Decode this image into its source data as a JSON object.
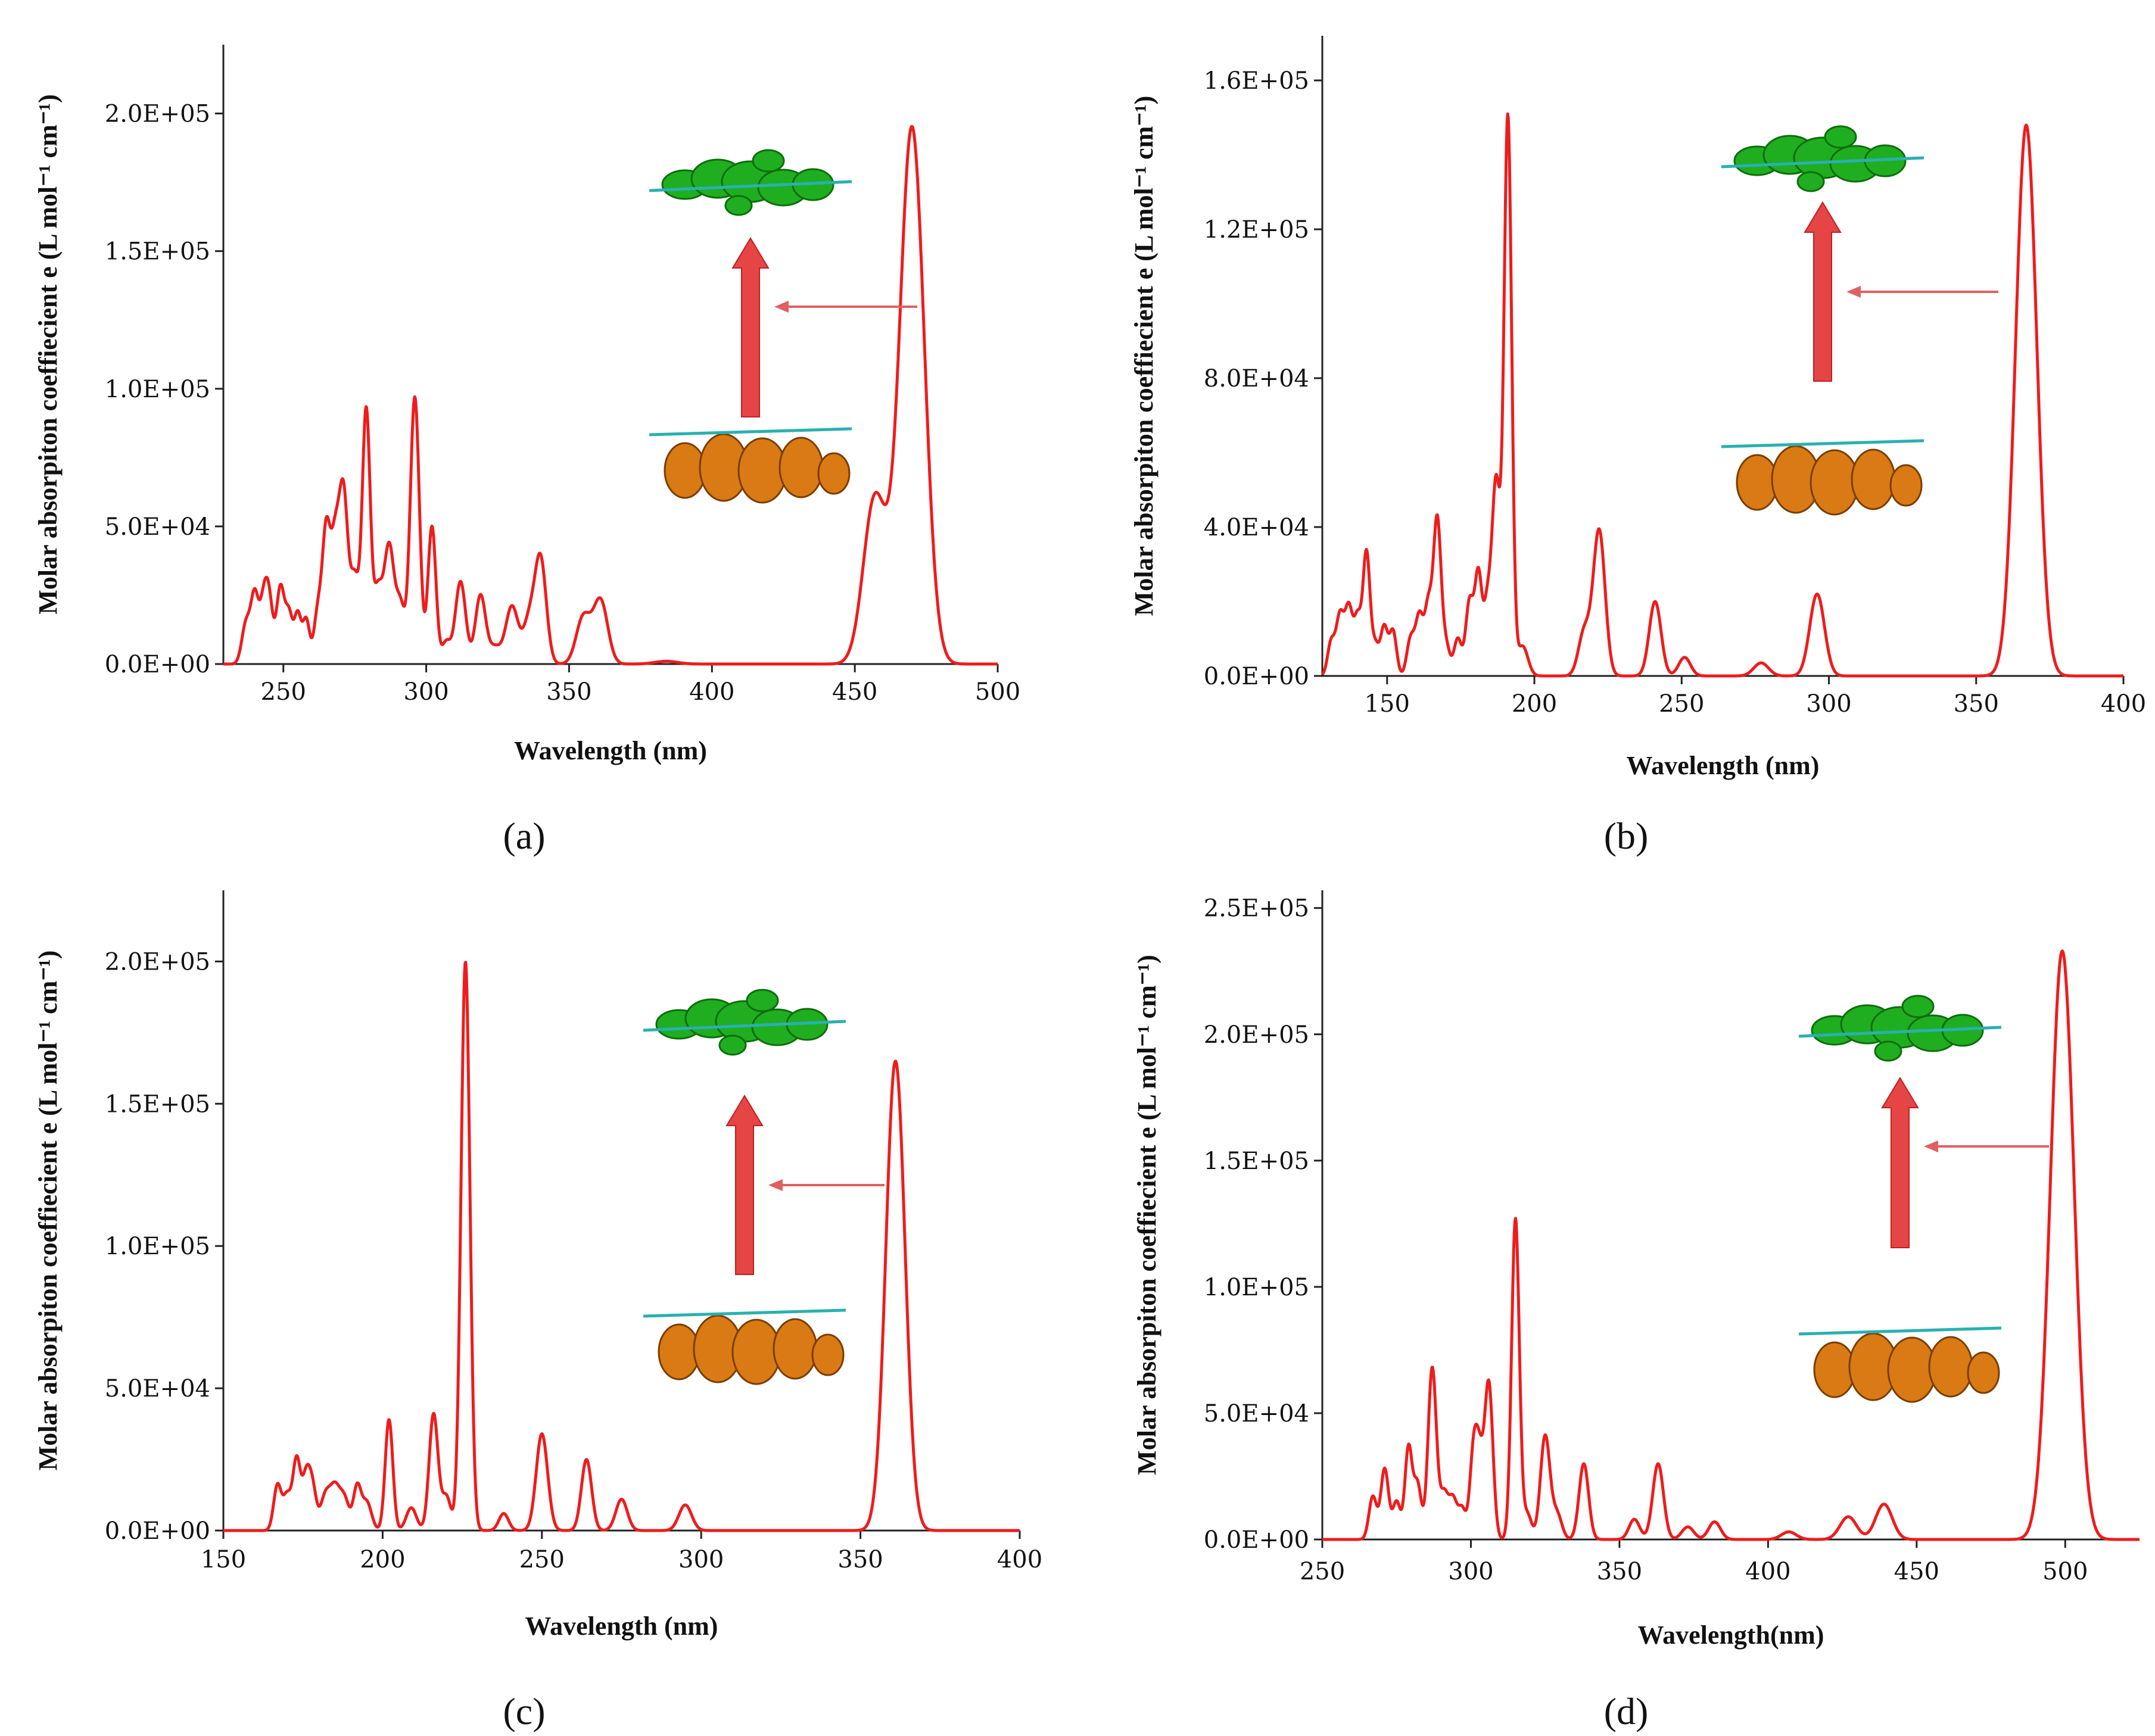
{
  "chart_data": [
    {
      "type": "line",
      "panel": "a",
      "caption": "(a)",
      "xlabel": "Wavelength (nm)",
      "ylabel": "Molar absorpiton coeffiecient e (L mol⁻¹ cm⁻¹)",
      "xlim": [
        229,
        500
      ],
      "ylim": [
        0,
        225000
      ],
      "xticks": [
        250,
        300,
        350,
        400,
        450,
        500
      ],
      "xtick_labels": [
        "250",
        "300",
        "350",
        "400",
        "450",
        "500"
      ],
      "yticks": [
        0,
        50000,
        100000,
        150000,
        200000
      ],
      "ytick_labels": [
        "0.0E+00",
        "5.0E+04",
        "1.0E+05",
        "1.5E+05",
        "2.0E+05"
      ],
      "color": "#ee1c1c",
      "baseline": 0,
      "peaks": [
        [
          237,
          15000,
          1.5
        ],
        [
          240,
          24000,
          1.3
        ],
        [
          243,
          20000,
          1.3
        ],
        [
          245,
          22000,
          1.3
        ],
        [
          249,
          28000,
          1.4
        ],
        [
          252,
          17000,
          1.2
        ],
        [
          255,
          18000,
          1.2
        ],
        [
          258,
          16000,
          1.2
        ],
        [
          262,
          18000,
          1.3
        ],
        [
          265,
          48000,
          1.4
        ],
        [
          268,
          38000,
          1.4
        ],
        [
          271,
          62000,
          1.6
        ],
        [
          275,
          30000,
          1.5
        ],
        [
          279,
          92000,
          1.4
        ],
        [
          283,
          25000,
          1.5
        ],
        [
          287,
          43000,
          1.8
        ],
        [
          291,
          20000,
          1.5
        ],
        [
          296,
          97000,
          1.6
        ],
        [
          302,
          50000,
          1.4
        ],
        [
          307,
          8000,
          1.5
        ],
        [
          312,
          30000,
          1.8
        ],
        [
          319,
          25000,
          1.8
        ],
        [
          324,
          6000,
          2.0
        ],
        [
          330,
          21000,
          2.2
        ],
        [
          336,
          15000,
          2.0
        ],
        [
          340,
          38000,
          2.0
        ],
        [
          355,
          17000,
          2.5
        ],
        [
          361,
          23000,
          2.5
        ],
        [
          384,
          1000,
          4.0
        ],
        [
          457,
          60000,
          4.0
        ],
        [
          470,
          195000,
          4.3
        ]
      ],
      "annotation": "HOMO to LUMO transition at the main absorption peak"
    },
    {
      "type": "line",
      "panel": "b",
      "caption": "(b)",
      "xlabel": "Wavelength (nm)",
      "ylabel": "Molar absorpiton coeffiecient e (L mol⁻¹ cm⁻¹)",
      "xlim": [
        128,
        400
      ],
      "ylim": [
        0,
        172000
      ],
      "xticks": [
        150,
        200,
        250,
        300,
        350,
        400
      ],
      "xtick_labels": [
        "150",
        "200",
        "250",
        "300",
        "350",
        "400"
      ],
      "yticks": [
        0,
        40000,
        80000,
        120000,
        160000
      ],
      "ytick_labels": [
        "0.0E+00",
        "4.0E+04",
        "8.0E+04",
        "1.2E+05",
        "1.6E+05"
      ],
      "color": "#ee1c1c",
      "baseline": 0,
      "peaks": [
        [
          131,
          9000,
          1.2
        ],
        [
          134,
          16000,
          1.3
        ],
        [
          137,
          18000,
          1.3
        ],
        [
          140,
          15000,
          1.2
        ],
        [
          143,
          33000,
          1.2
        ],
        [
          146,
          8000,
          1.2
        ],
        [
          149,
          13000,
          1.2
        ],
        [
          152,
          12000,
          1.2
        ],
        [
          158,
          10000,
          1.3
        ],
        [
          161,
          16000,
          1.3
        ],
        [
          164,
          18000,
          1.2
        ],
        [
          167,
          42000,
          1.3
        ],
        [
          170,
          8000,
          1.3
        ],
        [
          174,
          10000,
          1.3
        ],
        [
          178,
          20000,
          1.3
        ],
        [
          181,
          27000,
          1.2
        ],
        [
          184,
          18000,
          1.2
        ],
        [
          187,
          52000,
          1.4
        ],
        [
          191,
          150000,
          1.3
        ],
        [
          196,
          8000,
          1.8
        ],
        [
          217,
          12000,
          2.0
        ],
        [
          222,
          39000,
          2.0
        ],
        [
          241,
          20000,
          2.0
        ],
        [
          251,
          5000,
          2.0
        ],
        [
          277,
          3500,
          2.5
        ],
        [
          296,
          22000,
          2.5
        ],
        [
          367,
          148000,
          3.6
        ]
      ],
      "annotation": "HOMO to LUMO transition at the main absorption peak"
    },
    {
      "type": "line",
      "panel": "c",
      "caption": "(c)",
      "xlabel": "Wavelength (nm)",
      "ylabel": "Molar absorpiton coeffiecient e (L mol⁻¹ cm⁻¹)",
      "xlim": [
        150,
        400
      ],
      "ylim": [
        0,
        225000
      ],
      "xticks": [
        150,
        200,
        250,
        300,
        350,
        400
      ],
      "xtick_labels": [
        "150",
        "200",
        "250",
        "300",
        "350",
        "400"
      ],
      "yticks": [
        0,
        50000,
        100000,
        150000,
        200000
      ],
      "ytick_labels": [
        "0.0E+00",
        "5.0E+04",
        "1.0E+05",
        "1.5E+05",
        "2.0E+05"
      ],
      "color": "#ee1c1c",
      "baseline": 0,
      "peaks": [
        [
          167,
          16000,
          1.2
        ],
        [
          170,
          12000,
          1.2
        ],
        [
          173,
          25000,
          1.2
        ],
        [
          176,
          18000,
          1.2
        ],
        [
          178,
          14000,
          1.2
        ],
        [
          182,
          12000,
          1.5
        ],
        [
          185,
          14000,
          1.5
        ],
        [
          188,
          11000,
          1.5
        ],
        [
          192,
          15000,
          1.2
        ],
        [
          195,
          10000,
          1.5
        ],
        [
          202,
          39000,
          1.2
        ],
        [
          209,
          8000,
          1.6
        ],
        [
          216,
          41000,
          1.4
        ],
        [
          220,
          12000,
          1.4
        ],
        [
          226,
          200000,
          1.4
        ],
        [
          238,
          6000,
          1.5
        ],
        [
          250,
          34000,
          1.8
        ],
        [
          264,
          25000,
          1.6
        ],
        [
          275,
          11000,
          1.8
        ],
        [
          295,
          9000,
          2.0
        ],
        [
          361,
          165000,
          3.0
        ]
      ],
      "annotation": "HOMO to LUMO transition at the main absorption peak"
    },
    {
      "type": "line",
      "panel": "d",
      "caption": "(d)",
      "xlabel": "Wavelength(nm)",
      "ylabel": "Molar absorpiton coeffiecient e (L mol⁻¹ cm⁻¹)",
      "xlim": [
        250,
        525
      ],
      "ylim": [
        0,
        257000
      ],
      "xticks": [
        250,
        300,
        350,
        400,
        450,
        500
      ],
      "xtick_labels": [
        "250",
        "300",
        "350",
        "400",
        "450",
        "500"
      ],
      "yticks": [
        0,
        50000,
        100000,
        150000,
        200000,
        250000
      ],
      "ytick_labels": [
        "0.0E+00",
        "5.0E+04",
        "1.0E+05",
        "1.5E+05",
        "2.0E+05",
        "2.5E+05"
      ],
      "color": "#ee1c1c",
      "baseline": 0,
      "peaks": [
        [
          267,
          17000,
          1.3
        ],
        [
          271,
          28000,
          1.3
        ],
        [
          275,
          15000,
          1.3
        ],
        [
          279,
          36000,
          1.2
        ],
        [
          282,
          22000,
          1.3
        ],
        [
          287,
          68000,
          1.4
        ],
        [
          291,
          18000,
          1.4
        ],
        [
          294,
          15000,
          1.3
        ],
        [
          297,
          12000,
          1.3
        ],
        [
          301,
          36000,
          1.3
        ],
        [
          303,
          25000,
          1.2
        ],
        [
          306,
          62000,
          1.4
        ],
        [
          315,
          127000,
          1.3
        ],
        [
          319,
          10000,
          1.4
        ],
        [
          325,
          41000,
          1.6
        ],
        [
          329,
          10000,
          1.6
        ],
        [
          338,
          30000,
          1.6
        ],
        [
          355,
          8000,
          1.8
        ],
        [
          363,
          30000,
          1.8
        ],
        [
          373,
          5000,
          2.0
        ],
        [
          382,
          7000,
          2.0
        ],
        [
          407,
          3000,
          2.5
        ],
        [
          427,
          9000,
          2.8
        ],
        [
          439,
          14000,
          2.8
        ],
        [
          499,
          233000,
          4.0
        ]
      ],
      "annotation": "HOMO to LUMO transition at the main absorption peak"
    }
  ]
}
